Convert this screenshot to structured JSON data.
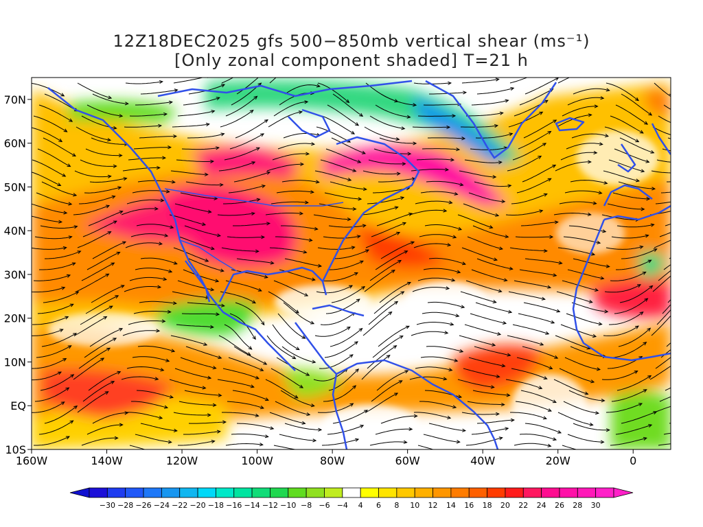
{
  "title": {
    "line1": "12Z18DEC2025 gfs 500−850mb vertical shear (ms⁻¹)",
    "line2": "[Only zonal component shaded] T=21 h"
  },
  "map": {
    "lon_range": [
      -160,
      10
    ],
    "lat_range": [
      -10,
      75
    ],
    "lat_ticks": [
      {
        "value": 70,
        "label": "70N"
      },
      {
        "value": 60,
        "label": "60N"
      },
      {
        "value": 50,
        "label": "50N"
      },
      {
        "value": 40,
        "label": "40N"
      },
      {
        "value": 30,
        "label": "30N"
      },
      {
        "value": 20,
        "label": "20N"
      },
      {
        "value": 10,
        "label": "10N"
      },
      {
        "value": 0,
        "label": "EQ"
      },
      {
        "value": -10,
        "label": "10S"
      }
    ],
    "lon_ticks": [
      {
        "value": -160,
        "label": "160W"
      },
      {
        "value": -140,
        "label": "140W"
      },
      {
        "value": -120,
        "label": "120W"
      },
      {
        "value": -100,
        "label": "100W"
      },
      {
        "value": -80,
        "label": "80W"
      },
      {
        "value": -60,
        "label": "60W"
      },
      {
        "value": -40,
        "label": "40W"
      },
      {
        "value": -20,
        "label": "20W"
      },
      {
        "value": 0,
        "label": "0"
      }
    ],
    "colors": {
      "coastline": "#3050e8",
      "streamline": "#000000",
      "background": "#ffffff"
    }
  },
  "colorbar": {
    "labels": [
      "−30",
      "−28",
      "−26",
      "−24",
      "−22",
      "−20",
      "−18",
      "−16",
      "−14",
      "−12",
      "−10",
      "−8",
      "−6",
      "−4",
      "4",
      "6",
      "8",
      "10",
      "12",
      "14",
      "16",
      "18",
      "20",
      "22",
      "24",
      "26",
      "28",
      "30"
    ],
    "colors": [
      "#1c10d8",
      "#1e3cf0",
      "#2058f8",
      "#1e78f8",
      "#1896f0",
      "#10b6f0",
      "#00d8f8",
      "#00e8c8",
      "#00e4a0",
      "#10dc78",
      "#20d850",
      "#60dc20",
      "#90e020",
      "#c0ec20",
      "#ffffff",
      "#ffff00",
      "#ffe400",
      "#ffc800",
      "#ffb000",
      "#ff9600",
      "#ff7c00",
      "#ff6000",
      "#ff3c00",
      "#ff1c1c",
      "#ff1860",
      "#ff0c90",
      "#ff10a8",
      "#ff18b8",
      "#ff20c8"
    ]
  }
}
